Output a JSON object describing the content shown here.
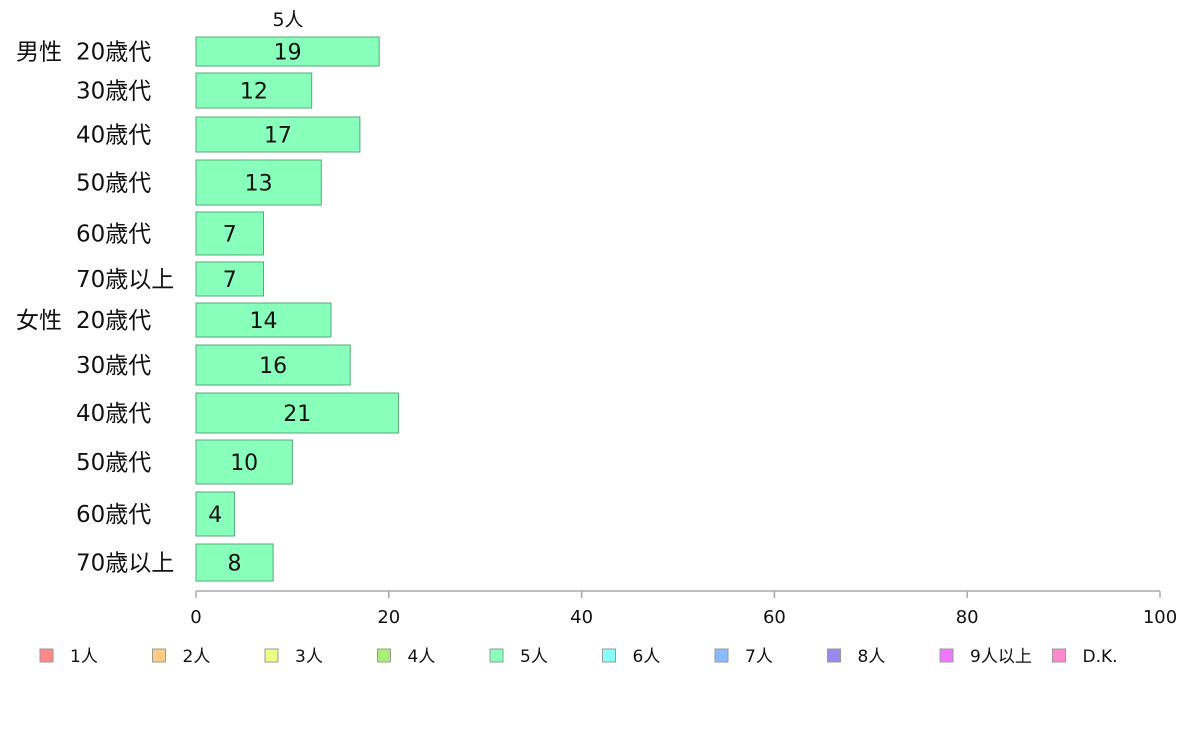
{
  "chart_data": {
    "type": "bar",
    "orientation": "horizontal",
    "series_header": "5人",
    "groups": [
      {
        "label": "男性",
        "first_category_index": 0
      },
      {
        "label": "女性",
        "first_category_index": 6
      }
    ],
    "categories": [
      "20歳代",
      "30歳代",
      "40歳代",
      "50歳代",
      "60歳代",
      "70歳以上",
      "20歳代",
      "30歳代",
      "40歳代",
      "50歳代",
      "60歳代",
      "70歳以上"
    ],
    "series": [
      {
        "name": "5人",
        "color": "#88ffbb",
        "values": [
          19,
          12,
          17,
          13,
          7,
          7,
          14,
          16,
          21,
          10,
          4,
          8
        ]
      }
    ],
    "xlim": [
      0,
      100
    ],
    "x_ticks": [
      0,
      20,
      40,
      60,
      80,
      100
    ],
    "legend_position": "bottom",
    "legend": [
      {
        "label": "1人",
        "color": "#ff8888"
      },
      {
        "label": "2人",
        "color": "#ffcc88"
      },
      {
        "label": "3人",
        "color": "#eeff88"
      },
      {
        "label": "4人",
        "color": "#aaee77"
      },
      {
        "label": "5人",
        "color": "#88ffbb"
      },
      {
        "label": "6人",
        "color": "#88ffff"
      },
      {
        "label": "7人",
        "color": "#88bbff"
      },
      {
        "label": "8人",
        "color": "#9988ee"
      },
      {
        "label": "9人以上",
        "color": "#ee77ff"
      },
      {
        "label": "D.K.",
        "color": "#ff88cc"
      }
    ],
    "grid": false
  }
}
